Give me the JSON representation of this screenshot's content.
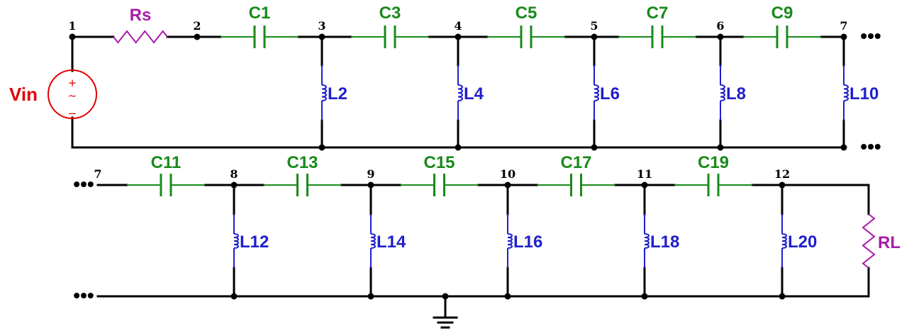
{
  "colors": {
    "capacitor": "#1a8a1a",
    "inductor": "#1f1fcc",
    "resistor": "#a81ca8",
    "source": "#e00000",
    "wire": "#000000"
  },
  "source": {
    "label": "Vin",
    "plus": "+",
    "minus": "−",
    "symbol": "~"
  },
  "resistors": {
    "series": "Rs",
    "load": "RL"
  },
  "ellipsis": "•••",
  "rows": [
    {
      "nodes": [
        "1",
        "2",
        "3",
        "4",
        "5",
        "6",
        "7"
      ],
      "capacitors": [
        "C1",
        "C3",
        "C5",
        "C7",
        "C9"
      ],
      "inductors": [
        "L2",
        "L4",
        "L6",
        "L8",
        "L10"
      ]
    },
    {
      "nodes": [
        "7",
        "8",
        "9",
        "10",
        "11",
        "12"
      ],
      "capacitors": [
        "C11",
        "C13",
        "C15",
        "C17",
        "C19"
      ],
      "inductors": [
        "L12",
        "L14",
        "L16",
        "L18",
        "L20"
      ]
    }
  ]
}
